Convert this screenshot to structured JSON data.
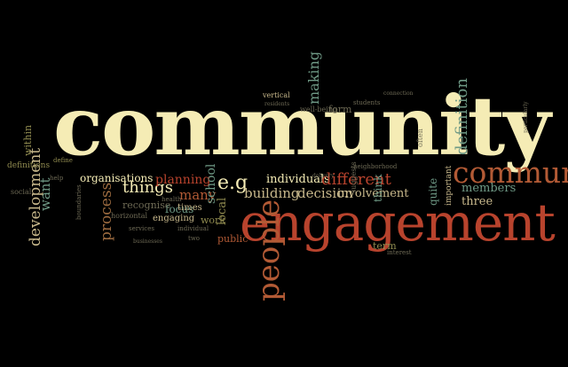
{
  "words": {
    "community": "community",
    "engagement": "engagement",
    "communities": "communities",
    "people": "people",
    "definition": "definition",
    "development": "development",
    "process": "process",
    "things": "things",
    "want": "want",
    "planning": "planning",
    "many": "many",
    "school": "school",
    "eg": "e.g",
    "building": "building",
    "decision": "decision",
    "individuals": "individuals",
    "different": "different",
    "involvement": "involvement",
    "members": "members",
    "three": "three",
    "organisations": "organisations",
    "focus": "focus",
    "times": "times",
    "recognise": "recognise",
    "engaging": "engaging",
    "work": "work",
    "local": "local",
    "public": "public",
    "term": "term",
    "think": "think",
    "quite": "quite",
    "making": "making",
    "well_being": "well-being",
    "form": "form",
    "vertical": "vertical",
    "within": "within",
    "definitions": "definitions",
    "social": "social",
    "neighborhood": "neighborhood",
    "important": "important",
    "horizontal": "horizontal",
    "services": "services",
    "health": "health",
    "individual": "individual",
    "suggests": "suggests",
    "connection": "connection",
    "students": "students",
    "often": "often",
    "interest": "interest",
    "residents": "residents",
    "boundaries": "boundaries",
    "businesses": "businesses",
    "define": "define",
    "help": "help",
    "delivery": "delivery",
    "particularly": "particularly",
    "two": "two"
  }
}
